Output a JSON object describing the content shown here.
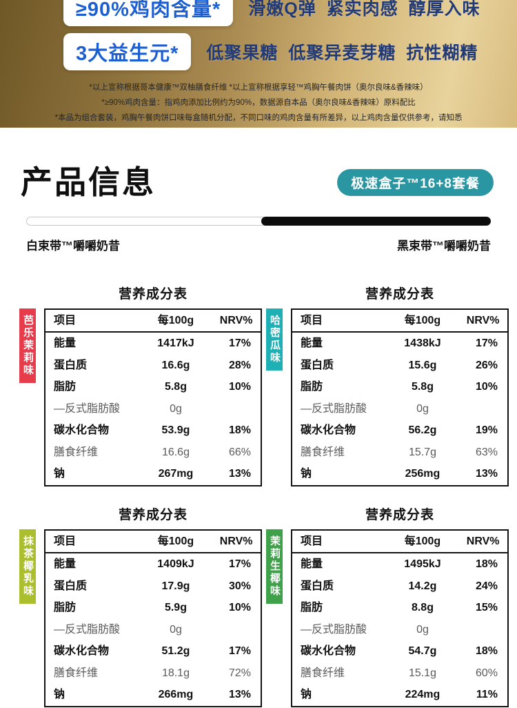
{
  "banner": {
    "claims": [
      {
        "pill": "≥90%鸡肉含量*",
        "desc": "滑嫩Q弹 紧实肉感 醇厚入味"
      },
      {
        "pill": "3大益生元*",
        "desc": "低聚果糖 低聚异麦芽糖 抗性糊精"
      }
    ],
    "disclaimers": [
      "*以上宣称根据哥本健康™双柚膳食纤维 *以上宣称根据享轻™鸡胸午餐肉饼（奥尔良味&香辣味）",
      "*≥90%鸡肉含量：指鸡肉添加比例约为90%，数据源自本品（奥尔良味&香辣味）原料配比",
      "*本品为组合套装，鸡胸午餐肉饼口味每盒随机分配，不同口味的鸡肉含量有所差异，以上鸡肉含量仅供参考，请知悉"
    ],
    "colors": {
      "pill_text": "#1b5fd3",
      "desc_text": "#223a75"
    }
  },
  "product_info": {
    "title": "产品信息",
    "badge": "极速盒子™16+8套餐",
    "badge_color": "#2a96a1",
    "left_label": "白束带™嚼嚼奶昔",
    "right_label": "黑束带™嚼嚼奶昔"
  },
  "tables": [
    {
      "title": "营养成分表",
      "flavor": "芭乐茉莉味",
      "flavor_color": "#e73c4c",
      "headers": [
        "项目",
        "每100g",
        "NRV%"
      ],
      "rows": [
        {
          "name": "能量",
          "value": "1417kJ",
          "nrv": "17%"
        },
        {
          "name": "蛋白质",
          "value": "16.6g",
          "nrv": "28%"
        },
        {
          "name": "脂肪",
          "value": "5.8g",
          "nrv": "10%"
        },
        {
          "name": "—反式脂肪酸",
          "value": "0g",
          "nrv": "",
          "muted": true
        },
        {
          "name": "碳水化合物",
          "value": "53.9g",
          "nrv": "18%"
        },
        {
          "name": "膳食纤维",
          "value": "16.6g",
          "nrv": "66%",
          "muted": true
        },
        {
          "name": "钠",
          "value": "267mg",
          "nrv": "13%"
        }
      ]
    },
    {
      "title": "营养成分表",
      "flavor": "哈密瓜味",
      "flavor_color": "#1fb0b5",
      "headers": [
        "项目",
        "每100g",
        "NRV%"
      ],
      "rows": [
        {
          "name": "能量",
          "value": "1438kJ",
          "nrv": "17%"
        },
        {
          "name": "蛋白质",
          "value": "15.6g",
          "nrv": "26%"
        },
        {
          "name": "脂肪",
          "value": "5.8g",
          "nrv": "10%"
        },
        {
          "name": "—反式脂肪酸",
          "value": "0g",
          "nrv": "",
          "muted": true
        },
        {
          "name": "碳水化合物",
          "value": "56.2g",
          "nrv": "19%"
        },
        {
          "name": "膳食纤维",
          "value": "15.7g",
          "nrv": "63%",
          "muted": true
        },
        {
          "name": "钠",
          "value": "256mg",
          "nrv": "13%"
        }
      ]
    },
    {
      "title": "营养成分表",
      "flavor": "抹茶椰乳味",
      "flavor_color": "#aabe2e",
      "headers": [
        "项目",
        "每100g",
        "NRV%"
      ],
      "rows": [
        {
          "name": "能量",
          "value": "1409kJ",
          "nrv": "17%"
        },
        {
          "name": "蛋白质",
          "value": "17.9g",
          "nrv": "30%"
        },
        {
          "name": "脂肪",
          "value": "5.9g",
          "nrv": "10%"
        },
        {
          "name": "—反式脂肪酸",
          "value": "0g",
          "nrv": "",
          "muted": true
        },
        {
          "name": "碳水化合物",
          "value": "51.2g",
          "nrv": "17%"
        },
        {
          "name": "膳食纤维",
          "value": "18.1g",
          "nrv": "72%",
          "muted": true
        },
        {
          "name": "钠",
          "value": "266mg",
          "nrv": "13%"
        }
      ]
    },
    {
      "title": "营养成分表",
      "flavor": "茉莉生椰味",
      "flavor_color": "#3fa14a",
      "headers": [
        "项目",
        "每100g",
        "NRV%"
      ],
      "rows": [
        {
          "name": "能量",
          "value": "1495kJ",
          "nrv": "18%"
        },
        {
          "name": "蛋白质",
          "value": "14.2g",
          "nrv": "24%"
        },
        {
          "name": "脂肪",
          "value": "8.8g",
          "nrv": "15%"
        },
        {
          "name": "—反式脂肪酸",
          "value": "0g",
          "nrv": "",
          "muted": true
        },
        {
          "name": "碳水化合物",
          "value": "54.7g",
          "nrv": "18%"
        },
        {
          "name": "膳食纤维",
          "value": "15.1g",
          "nrv": "60%",
          "muted": true
        },
        {
          "name": "钠",
          "value": "224mg",
          "nrv": "11%"
        }
      ]
    }
  ]
}
